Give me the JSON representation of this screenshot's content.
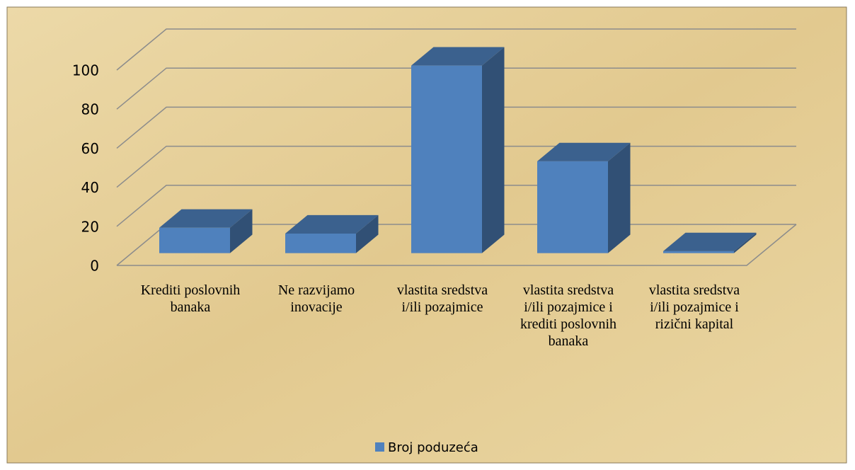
{
  "chart_data": {
    "type": "bar3d",
    "categories": [
      "Krediti poslovnih banaka",
      "Ne razvijamo inovacije",
      "vlastita sredstva i/ili pozajmice",
      "vlastita sredstva i/ili pozajmice i krediti poslovnih banaka",
      "vlastita sredstva i/ili pozajmice i rizični kapital"
    ],
    "series": [
      {
        "name": "Broj poduzeća",
        "color": "#4f81bd",
        "values": [
          13,
          10,
          96,
          47,
          1
        ]
      }
    ],
    "ylim": [
      0,
      100
    ],
    "yticks": [
      0,
      20,
      40,
      60,
      80,
      100
    ],
    "grid": true,
    "legend": "bottom"
  }
}
